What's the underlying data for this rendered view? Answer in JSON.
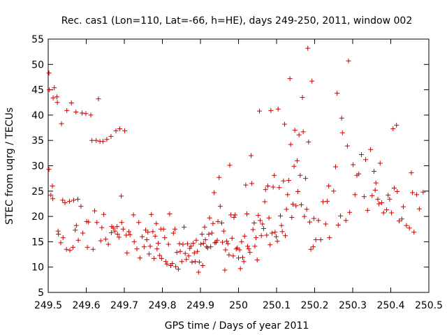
{
  "chart_data": {
    "type": "scatter",
    "title": "Rec. cas1 (Lon=110, Lat=-66, h=HE), days 249-250, 2011, window 002",
    "xlabel": "GPS time / Days of year 2011",
    "ylabel": "STEC from uqrg / TECUs",
    "xlim": [
      249.5,
      250.5
    ],
    "ylim": [
      5,
      55
    ],
    "xticks": [
      249.5,
      249.6,
      249.7,
      249.8,
      249.9,
      250,
      250.1,
      250.2,
      250.3,
      250.4,
      250.5
    ],
    "xtick_labels": [
      "249.5",
      "249.6",
      "249.7",
      "249.8",
      "249.9",
      "250",
      "250.1",
      "250.2",
      "250.3",
      "250.4",
      "250.5"
    ],
    "yticks": [
      5,
      10,
      15,
      20,
      25,
      30,
      35,
      40,
      45,
      50,
      55
    ],
    "ytick_labels": [
      "5",
      "10",
      "15",
      "20",
      "25",
      "30",
      "35",
      "40",
      "45",
      "50",
      "55"
    ],
    "grid": false,
    "legend": false,
    "marker": "plus",
    "color": "#cc0000",
    "points": [
      [
        249.502,
        48.3
      ],
      [
        249.503,
        45.0
      ],
      [
        249.502,
        29.3
      ],
      [
        249.507,
        24.2
      ],
      [
        249.511,
        26.0
      ],
      [
        249.512,
        23.5
      ],
      [
        249.513,
        43.4
      ],
      [
        249.516,
        45.4
      ],
      [
        249.523,
        43.6
      ],
      [
        249.524,
        42.5
      ],
      [
        249.526,
        17.1
      ],
      [
        249.527,
        16.5
      ],
      [
        249.533,
        14.8
      ],
      [
        249.535,
        38.3
      ],
      [
        249.538,
        23.2
      ],
      [
        249.539,
        15.8
      ],
      [
        249.544,
        22.7
      ],
      [
        249.548,
        13.5
      ],
      [
        249.549,
        40.9
      ],
      [
        249.556,
        23.0
      ],
      [
        249.557,
        13.3
      ],
      [
        249.561,
        42.4
      ],
      [
        249.565,
        13.9
      ],
      [
        249.567,
        23.2
      ],
      [
        249.571,
        17.3
      ],
      [
        249.573,
        40.6
      ],
      [
        249.574,
        18.2
      ],
      [
        249.578,
        23.4
      ],
      [
        249.579,
        15.3
      ],
      [
        249.586,
        22.0
      ],
      [
        249.589,
        40.4
      ],
      [
        249.591,
        16.7
      ],
      [
        249.599,
        40.3
      ],
      [
        249.601,
        19.0
      ],
      [
        249.603,
        13.9
      ],
      [
        249.606,
        18.9
      ],
      [
        249.612,
        40.0
      ],
      [
        249.615,
        35.0
      ],
      [
        249.618,
        13.5
      ],
      [
        249.622,
        21.1
      ],
      [
        249.626,
        35.0
      ],
      [
        249.628,
        18.8
      ],
      [
        249.632,
        43.2
      ],
      [
        249.636,
        34.8
      ],
      [
        249.638,
        15.2
      ],
      [
        249.641,
        17.8
      ],
      [
        249.644,
        34.8
      ],
      [
        249.646,
        20.4
      ],
      [
        249.651,
        15.5
      ],
      [
        249.654,
        35.2
      ],
      [
        249.658,
        14.5
      ],
      [
        249.665,
        35.8
      ],
      [
        249.666,
        16.8
      ],
      [
        249.667,
        18.0
      ],
      [
        249.671,
        17.7
      ],
      [
        249.675,
        17.1
      ],
      [
        249.678,
        36.9
      ],
      [
        249.681,
        18.0
      ],
      [
        249.682,
        16.5
      ],
      [
        249.686,
        15.9
      ],
      [
        249.688,
        37.3
      ],
      [
        249.692,
        24.0
      ],
      [
        249.693,
        18.8
      ],
      [
        249.697,
        17.5
      ],
      [
        249.701,
        36.9
      ],
      [
        249.705,
        16.3
      ],
      [
        249.707,
        12.8
      ],
      [
        249.712,
        17.0
      ],
      [
        249.715,
        16.4
      ],
      [
        249.724,
        20.3
      ],
      [
        249.726,
        15.0
      ],
      [
        249.733,
        13.6
      ],
      [
        249.738,
        18.8
      ],
      [
        249.741,
        11.8
      ],
      [
        249.747,
        16.0
      ],
      [
        249.752,
        14.0
      ],
      [
        249.756,
        17.3
      ],
      [
        249.759,
        15.4
      ],
      [
        249.762,
        16.9
      ],
      [
        249.765,
        12.6
      ],
      [
        249.768,
        14.1
      ],
      [
        249.771,
        20.4
      ],
      [
        249.775,
        17.0
      ],
      [
        249.778,
        11.7
      ],
      [
        249.781,
        16.1
      ],
      [
        249.784,
        18.6
      ],
      [
        249.786,
        13.6
      ],
      [
        249.789,
        14.7
      ],
      [
        249.793,
        12.3
      ],
      [
        249.796,
        17.5
      ],
      [
        249.798,
        11.7
      ],
      [
        249.803,
        17.5
      ],
      [
        249.806,
        15.8
      ],
      [
        249.809,
        11.1
      ],
      [
        249.812,
        10.6
      ],
      [
        249.816,
        14.5
      ],
      [
        249.819,
        20.5
      ],
      [
        249.822,
        10.3
      ],
      [
        249.826,
        10.7
      ],
      [
        249.829,
        16.7
      ],
      [
        249.833,
        17.5
      ],
      [
        249.835,
        10.1
      ],
      [
        249.838,
        12.9
      ],
      [
        249.842,
        9.6
      ],
      [
        249.845,
        14.6
      ],
      [
        249.847,
        13.1
      ],
      [
        249.851,
        11.1
      ],
      [
        249.854,
        14.5
      ],
      [
        249.857,
        17.9
      ],
      [
        249.86,
        12.7
      ],
      [
        249.863,
        11.5
      ],
      [
        249.866,
        14.6
      ],
      [
        249.869,
        12.2
      ],
      [
        249.872,
        13.7
      ],
      [
        249.875,
        14.1
      ],
      [
        249.878,
        11.0
      ],
      [
        249.881,
        14.7
      ],
      [
        249.884,
        12.8
      ],
      [
        249.886,
        11.1
      ],
      [
        249.889,
        15.3
      ],
      [
        249.892,
        13.1
      ],
      [
        249.895,
        9.0
      ],
      [
        249.897,
        11.0
      ],
      [
        249.901,
        14.5
      ],
      [
        249.904,
        16.5
      ],
      [
        249.906,
        10.3
      ],
      [
        249.908,
        14.7
      ],
      [
        249.911,
        17.9
      ],
      [
        249.913,
        15.4
      ],
      [
        249.916,
        14.0
      ],
      [
        249.919,
        13.8
      ],
      [
        249.922,
        16.5
      ],
      [
        249.924,
        19.7
      ],
      [
        249.927,
        14.0
      ],
      [
        249.93,
        16.7
      ],
      [
        249.933,
        18.6
      ],
      [
        249.936,
        24.7
      ],
      [
        249.938,
        14.8
      ],
      [
        249.941,
        14.9
      ],
      [
        249.944,
        15.3
      ],
      [
        249.946,
        19.0
      ],
      [
        249.949,
        27.7
      ],
      [
        249.952,
        22.0
      ],
      [
        249.956,
        18.7
      ],
      [
        249.958,
        14.9
      ],
      [
        249.961,
        17.1
      ],
      [
        249.964,
        9.4
      ],
      [
        249.966,
        13.4
      ],
      [
        249.969,
        15.1
      ],
      [
        249.972,
        14.6
      ],
      [
        249.975,
        12.4
      ],
      [
        249.977,
        30.1
      ],
      [
        249.98,
        20.3
      ],
      [
        249.983,
        15.7
      ],
      [
        249.986,
        12.2
      ],
      [
        249.988,
        19.8
      ],
      [
        249.991,
        20.3
      ],
      [
        249.994,
        13.6
      ],
      [
        249.997,
        13.8
      ],
      [
        250.0,
        11.8
      ],
      [
        250.003,
        13.4
      ],
      [
        250.005,
        9.7
      ],
      [
        250.008,
        15.0
      ],
      [
        250.011,
        11.9
      ],
      [
        250.014,
        11.1
      ],
      [
        250.016,
        16.1
      ],
      [
        250.019,
        26.2
      ],
      [
        250.022,
        20.5
      ],
      [
        250.024,
        14.1
      ],
      [
        250.027,
        13.6
      ],
      [
        250.03,
        12.9
      ],
      [
        250.033,
        32.0
      ],
      [
        250.035,
        26.5
      ],
      [
        250.038,
        17.4
      ],
      [
        250.041,
        18.7
      ],
      [
        250.043,
        14.1
      ],
      [
        250.046,
        15.8
      ],
      [
        250.049,
        11.4
      ],
      [
        250.052,
        20.2
      ],
      [
        250.055,
        40.8
      ],
      [
        250.057,
        19.2
      ],
      [
        250.06,
        16.2
      ],
      [
        250.063,
        18.5
      ],
      [
        250.066,
        17.6
      ],
      [
        250.069,
        22.9
      ],
      [
        250.071,
        25.3
      ],
      [
        250.074,
        16.3
      ],
      [
        250.077,
        26.0
      ],
      [
        250.08,
        19.7
      ],
      [
        250.083,
        14.4
      ],
      [
        250.085,
        40.9
      ],
      [
        250.088,
        16.7
      ],
      [
        250.091,
        25.8
      ],
      [
        250.094,
        28.1
      ],
      [
        250.096,
        16.9
      ],
      [
        250.099,
        16.0
      ],
      [
        250.102,
        15.1
      ],
      [
        250.104,
        41.2
      ],
      [
        250.107,
        25.7
      ],
      [
        250.11,
        20.1
      ],
      [
        250.113,
        18.2
      ],
      [
        250.115,
        17.0
      ],
      [
        250.118,
        27.0
      ],
      [
        250.121,
        38.2
      ],
      [
        250.123,
        16.2
      ],
      [
        250.126,
        21.4
      ],
      [
        250.129,
        24.3
      ],
      [
        250.132,
        27.1
      ],
      [
        250.135,
        47.2
      ],
      [
        250.137,
        34.2
      ],
      [
        250.14,
        19.8
      ],
      [
        250.143,
        22.4
      ],
      [
        250.146,
        29.9
      ],
      [
        250.148,
        37.0
      ],
      [
        250.151,
        22.1
      ],
      [
        250.154,
        31.0
      ],
      [
        250.156,
        24.9
      ],
      [
        250.159,
        36.1
      ],
      [
        250.162,
        28.1
      ],
      [
        250.165,
        22.3
      ],
      [
        250.168,
        43.5
      ],
      [
        250.17,
        36.7
      ],
      [
        250.173,
        20.0
      ],
      [
        250.176,
        27.5
      ],
      [
        250.179,
        21.4
      ],
      [
        250.182,
        53.2
      ],
      [
        250.184,
        34.7
      ],
      [
        250.187,
        18.9
      ],
      [
        250.19,
        13.5
      ],
      [
        250.193,
        46.7
      ],
      [
        250.196,
        14.0
      ],
      [
        250.198,
        19.6
      ],
      [
        250.203,
        15.4
      ],
      [
        250.21,
        19.2
      ],
      [
        250.216,
        15.4
      ],
      [
        250.222,
        22.9
      ],
      [
        250.229,
        18.5
      ],
      [
        250.233,
        23.0
      ],
      [
        250.237,
        26.0
      ],
      [
        250.239,
        15.8
      ],
      [
        250.25,
        25.0
      ],
      [
        250.255,
        29.8
      ],
      [
        250.259,
        44.3
      ],
      [
        250.262,
        18.3
      ],
      [
        250.268,
        20.1
      ],
      [
        250.271,
        39.4
      ],
      [
        250.273,
        36.5
      ],
      [
        250.282,
        19.2
      ],
      [
        250.286,
        33.9
      ],
      [
        250.289,
        50.7
      ],
      [
        250.292,
        20.8
      ],
      [
        250.301,
        30.2
      ],
      [
        250.306,
        24.3
      ],
      [
        250.311,
        28.1
      ],
      [
        250.316,
        28.4
      ],
      [
        250.323,
        32.2
      ],
      [
        250.33,
        23.9
      ],
      [
        250.334,
        31.2
      ],
      [
        250.339,
        21.2
      ],
      [
        250.347,
        33.2
      ],
      [
        250.351,
        24.1
      ],
      [
        250.356,
        28.9
      ],
      [
        250.359,
        25.2
      ],
      [
        250.361,
        26.6
      ],
      [
        250.366,
        23.4
      ],
      [
        250.369,
        22.5
      ],
      [
        250.372,
        30.5
      ],
      [
        250.376,
        22.7
      ],
      [
        250.381,
        20.7
      ],
      [
        250.389,
        21.3
      ],
      [
        250.393,
        24.2
      ],
      [
        250.397,
        23.4
      ],
      [
        250.402,
        20.7
      ],
      [
        250.406,
        37.3
      ],
      [
        250.409,
        25.6
      ],
      [
        250.415,
        38.0
      ],
      [
        250.417,
        24.9
      ],
      [
        250.422,
        19.1
      ],
      [
        250.429,
        19.5
      ],
      [
        250.433,
        21.9
      ],
      [
        250.441,
        18.2
      ],
      [
        250.449,
        17.7
      ],
      [
        250.454,
        28.6
      ],
      [
        250.457,
        24.7
      ],
      [
        250.461,
        16.9
      ],
      [
        250.468,
        24.3
      ],
      [
        250.475,
        21.5
      ],
      [
        250.485,
        24.8
      ]
    ]
  }
}
